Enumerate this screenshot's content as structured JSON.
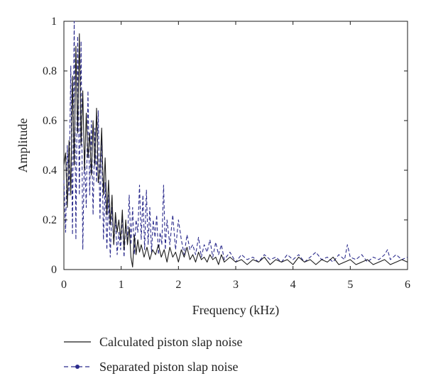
{
  "chart_data": {
    "type": "line",
    "title": "",
    "xlabel": "Frequency (kHz)",
    "ylabel": "Amplitude",
    "xlim": [
      0,
      6
    ],
    "ylim": [
      0,
      1
    ],
    "x_ticks": [
      0,
      1,
      2,
      3,
      4,
      5,
      6
    ],
    "y_ticks": [
      0,
      0.2,
      0.4,
      0.6,
      0.8,
      1
    ],
    "x_tick_labels": [
      "0",
      "1",
      "2",
      "3",
      "4",
      "5",
      "6"
    ],
    "y_tick_labels": [
      "0",
      "0.2",
      "0.4",
      "0.6",
      "0.8",
      "1"
    ],
    "grid": false,
    "legend_position": "bottom",
    "series": [
      {
        "name": "Calculated piston slap noise",
        "color": "#1a1a1a",
        "style": "solid",
        "x": [
          0,
          0.03,
          0.06,
          0.09,
          0.12,
          0.15,
          0.18,
          0.21,
          0.24,
          0.27,
          0.3,
          0.33,
          0.36,
          0.39,
          0.42,
          0.45,
          0.48,
          0.51,
          0.54,
          0.57,
          0.6,
          0.63,
          0.66,
          0.69,
          0.72,
          0.75,
          0.78,
          0.81,
          0.84,
          0.87,
          0.9,
          0.93,
          0.96,
          0.99,
          1.02,
          1.05,
          1.08,
          1.11,
          1.14,
          1.17,
          1.2,
          1.23,
          1.26,
          1.29,
          1.32,
          1.35,
          1.4,
          1.45,
          1.5,
          1.55,
          1.6,
          1.65,
          1.7,
          1.75,
          1.8,
          1.85,
          1.9,
          1.95,
          2,
          2.05,
          2.1,
          2.15,
          2.2,
          2.25,
          2.3,
          2.35,
          2.4,
          2.45,
          2.5,
          2.55,
          2.6,
          2.65,
          2.7,
          2.75,
          2.8,
          2.9,
          3,
          3.1,
          3.2,
          3.3,
          3.4,
          3.5,
          3.6,
          3.7,
          3.8,
          3.9,
          4,
          4.1,
          4.2,
          4.3,
          4.4,
          4.5,
          4.6,
          4.7,
          4.8,
          4.9,
          5,
          5.1,
          5.2,
          5.3,
          5.4,
          5.5,
          5.6,
          5.7,
          5.8,
          5.9,
          6
        ],
        "y": [
          0.42,
          0.47,
          0.25,
          0.52,
          0.3,
          0.78,
          0.42,
          0.9,
          0.55,
          0.95,
          0.5,
          0.72,
          0.4,
          0.63,
          0.45,
          0.55,
          0.38,
          0.6,
          0.42,
          0.65,
          0.35,
          0.4,
          0.57,
          0.3,
          0.45,
          0.22,
          0.36,
          0.18,
          0.3,
          0.1,
          0.23,
          0.15,
          0.2,
          0.12,
          0.24,
          0.08,
          0.2,
          0.1,
          0.17,
          0.05,
          0.01,
          0.14,
          0.06,
          0.12,
          0.07,
          0.1,
          0.05,
          0.09,
          0.04,
          0.08,
          0.06,
          0.1,
          0.05,
          0.08,
          0.03,
          0.09,
          0.05,
          0.07,
          0.03,
          0.08,
          0.05,
          0.09,
          0.04,
          0.06,
          0.03,
          0.07,
          0.04,
          0.05,
          0.03,
          0.06,
          0.04,
          0.05,
          0.02,
          0.06,
          0.03,
          0.05,
          0.03,
          0.04,
          0.02,
          0.04,
          0.03,
          0.05,
          0.02,
          0.04,
          0.03,
          0.04,
          0.02,
          0.05,
          0.03,
          0.04,
          0.02,
          0.04,
          0.03,
          0.05,
          0.02,
          0.03,
          0.04,
          0.02,
          0.03,
          0.04,
          0.02,
          0.03,
          0.04,
          0.02,
          0.03,
          0.04,
          0.03
        ]
      },
      {
        "name": "Separated piston slap noise",
        "color": "#2b2b8c",
        "style": "dashed",
        "x": [
          0,
          0.03,
          0.06,
          0.09,
          0.12,
          0.15,
          0.18,
          0.21,
          0.24,
          0.27,
          0.3,
          0.33,
          0.36,
          0.39,
          0.42,
          0.45,
          0.48,
          0.51,
          0.54,
          0.57,
          0.6,
          0.63,
          0.66,
          0.69,
          0.72,
          0.75,
          0.78,
          0.81,
          0.84,
          0.87,
          0.9,
          0.93,
          0.96,
          0.99,
          1.02,
          1.05,
          1.08,
          1.11,
          1.14,
          1.17,
          1.2,
          1.23,
          1.26,
          1.29,
          1.32,
          1.35,
          1.38,
          1.41,
          1.44,
          1.47,
          1.5,
          1.53,
          1.56,
          1.59,
          1.62,
          1.65,
          1.68,
          1.71,
          1.74,
          1.77,
          1.8,
          1.85,
          1.9,
          1.95,
          2,
          2.05,
          2.1,
          2.15,
          2.2,
          2.25,
          2.3,
          2.35,
          2.4,
          2.45,
          2.5,
          2.55,
          2.6,
          2.65,
          2.7,
          2.75,
          2.8,
          2.9,
          3,
          3.1,
          3.2,
          3.3,
          3.4,
          3.5,
          3.6,
          3.7,
          3.8,
          3.9,
          4,
          4.1,
          4.2,
          4.3,
          4.4,
          4.5,
          4.6,
          4.7,
          4.8,
          4.9,
          4.95,
          5,
          5.1,
          5.2,
          5.3,
          5.4,
          5.5,
          5.6,
          5.65,
          5.7,
          5.8,
          5.9,
          6
        ],
        "y": [
          0.36,
          0.15,
          0.5,
          0.3,
          0.82,
          0.14,
          1.0,
          0.12,
          0.94,
          0.3,
          0.92,
          0.08,
          0.48,
          0.25,
          0.72,
          0.3,
          0.6,
          0.22,
          0.57,
          0.35,
          0.64,
          0.2,
          0.55,
          0.12,
          0.35,
          0.08,
          0.3,
          0.05,
          0.25,
          0.1,
          0.2,
          0.06,
          0.15,
          0.08,
          0.22,
          0.05,
          0.18,
          0.12,
          0.3,
          0.1,
          0.25,
          0.06,
          0.2,
          0.15,
          0.34,
          0.12,
          0.3,
          0.08,
          0.32,
          0.1,
          0.25,
          0.07,
          0.2,
          0.13,
          0.22,
          0.06,
          0.15,
          0.1,
          0.34,
          0.08,
          0.2,
          0.1,
          0.22,
          0.08,
          0.2,
          0.12,
          0.06,
          0.14,
          0.08,
          0.1,
          0.06,
          0.13,
          0.05,
          0.1,
          0.07,
          0.12,
          0.05,
          0.11,
          0.06,
          0.1,
          0.04,
          0.07,
          0.03,
          0.06,
          0.04,
          0.05,
          0.03,
          0.06,
          0.04,
          0.05,
          0.03,
          0.06,
          0.04,
          0.06,
          0.03,
          0.05,
          0.07,
          0.04,
          0.05,
          0.03,
          0.06,
          0.04,
          0.1,
          0.05,
          0.04,
          0.06,
          0.03,
          0.05,
          0.04,
          0.06,
          0.08,
          0.04,
          0.06,
          0.04,
          0.05
        ]
      }
    ]
  }
}
